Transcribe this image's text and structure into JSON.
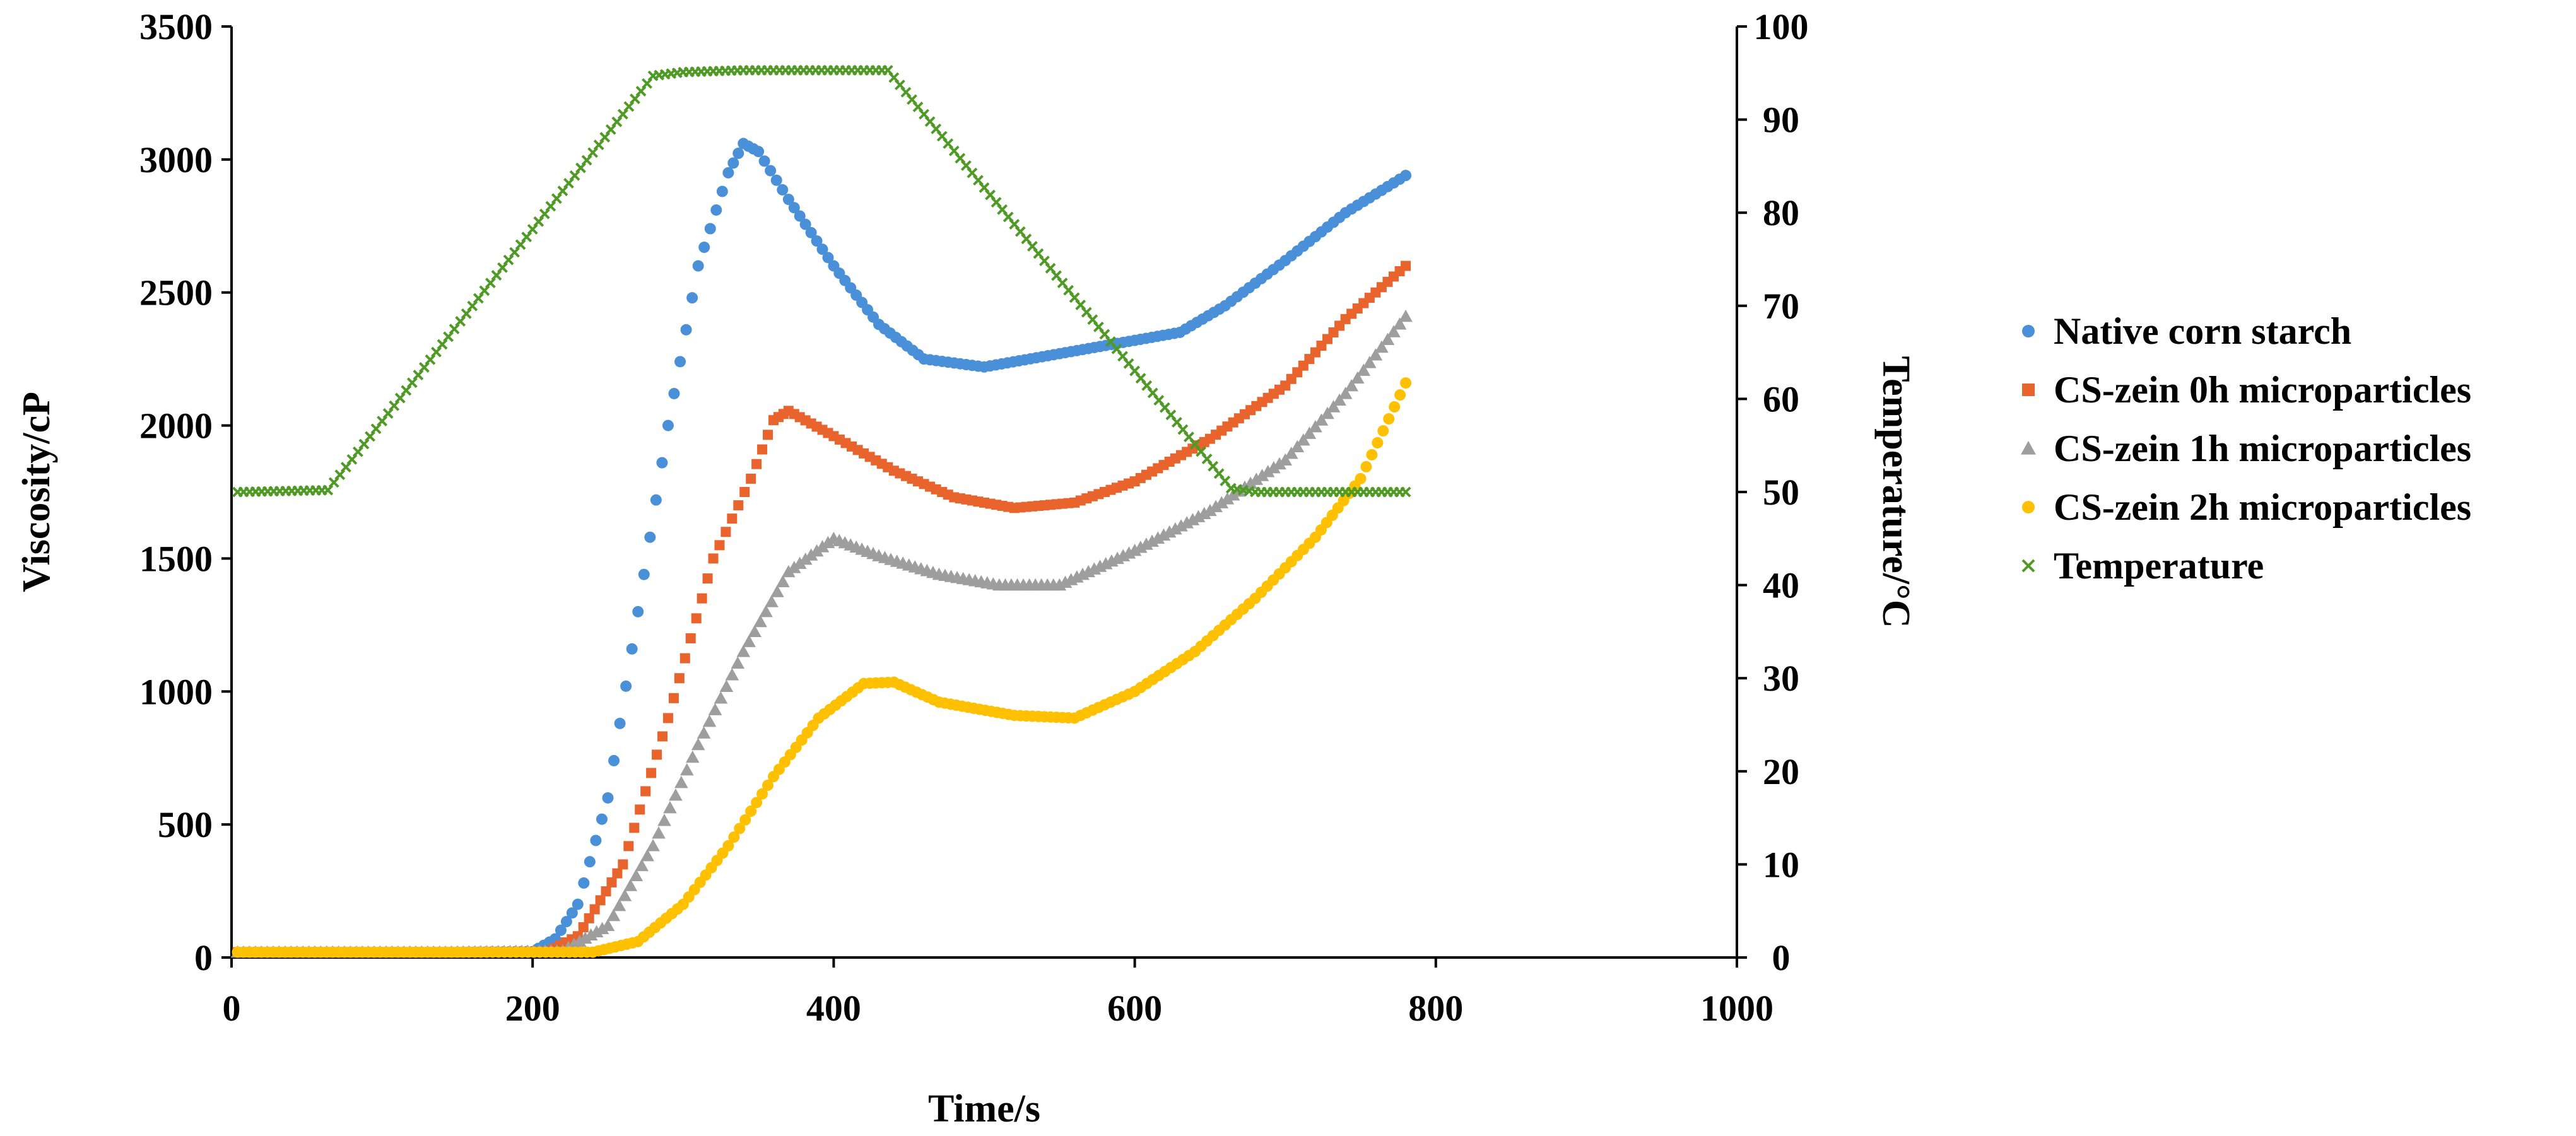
{
  "chart_data": {
    "type": "scatter",
    "title": "",
    "xlabel": "Time/s",
    "ylabel": "Viscosity/cP",
    "y2label": "Temperature/°C",
    "xlim": [
      0,
      1000
    ],
    "ylim": [
      0,
      3500
    ],
    "y2lim": [
      0,
      100
    ],
    "xticks": [
      "0",
      "200",
      "400",
      "600",
      "800",
      "1000"
    ],
    "yticks": [
      "0",
      "500",
      "1000",
      "1500",
      "2000",
      "2500",
      "3000",
      "3500"
    ],
    "y2ticks": [
      "0",
      "10",
      "20",
      "30",
      "40",
      "50",
      "60",
      "70",
      "80",
      "90",
      "100"
    ],
    "grid": false,
    "legend_position": "right",
    "series": [
      {
        "name": "Native corn starch",
        "axis": "left",
        "marker": "circle",
        "color": "#4A90D9",
        "points": [
          [
            4,
            20
          ],
          [
            150,
            20
          ],
          [
            200,
            22
          ],
          [
            215,
            70
          ],
          [
            230,
            200
          ],
          [
            250,
            600
          ],
          [
            270,
            1300
          ],
          [
            290,
            2000
          ],
          [
            310,
            2600
          ],
          [
            330,
            2950
          ],
          [
            340,
            3060
          ],
          [
            350,
            3030
          ],
          [
            370,
            2850
          ],
          [
            400,
            2600
          ],
          [
            430,
            2380
          ],
          [
            460,
            2250
          ],
          [
            500,
            2220
          ],
          [
            550,
            2270
          ],
          [
            600,
            2320
          ],
          [
            630,
            2350
          ],
          [
            660,
            2450
          ],
          [
            700,
            2620
          ],
          [
            740,
            2800
          ],
          [
            780,
            2940
          ]
        ]
      },
      {
        "name": "CS-zein 0h microparticles",
        "axis": "left",
        "marker": "square",
        "color": "#E8642C",
        "points": [
          [
            4,
            20
          ],
          [
            150,
            20
          ],
          [
            210,
            22
          ],
          [
            230,
            80
          ],
          [
            260,
            350
          ],
          [
            290,
            900
          ],
          [
            320,
            1500
          ],
          [
            345,
            1800
          ],
          [
            360,
            2020
          ],
          [
            370,
            2055
          ],
          [
            400,
            1960
          ],
          [
            440,
            1830
          ],
          [
            480,
            1730
          ],
          [
            520,
            1690
          ],
          [
            560,
            1710
          ],
          [
            600,
            1790
          ],
          [
            650,
            1950
          ],
          [
            700,
            2150
          ],
          [
            740,
            2400
          ],
          [
            780,
            2600
          ]
        ]
      },
      {
        "name": "CS-zein 1h microparticles",
        "axis": "left",
        "marker": "triangle",
        "color": "#9E9E9E",
        "points": [
          [
            4,
            20
          ],
          [
            150,
            20
          ],
          [
            220,
            25
          ],
          [
            250,
            120
          ],
          [
            280,
            420
          ],
          [
            310,
            800
          ],
          [
            340,
            1150
          ],
          [
            370,
            1450
          ],
          [
            400,
            1575
          ],
          [
            430,
            1510
          ],
          [
            470,
            1440
          ],
          [
            510,
            1400
          ],
          [
            550,
            1400
          ],
          [
            600,
            1530
          ],
          [
            650,
            1680
          ],
          [
            700,
            1870
          ],
          [
            740,
            2120
          ],
          [
            780,
            2410
          ]
        ]
      },
      {
        "name": "CS-zein 2h microparticles",
        "axis": "left",
        "marker": "circle",
        "color": "#FFC000",
        "points": [
          [
            4,
            20
          ],
          [
            150,
            20
          ],
          [
            240,
            20
          ],
          [
            270,
            60
          ],
          [
            300,
            200
          ],
          [
            330,
            420
          ],
          [
            360,
            680
          ],
          [
            390,
            900
          ],
          [
            420,
            1030
          ],
          [
            440,
            1035
          ],
          [
            470,
            960
          ],
          [
            520,
            910
          ],
          [
            560,
            900
          ],
          [
            600,
            1000
          ],
          [
            640,
            1150
          ],
          [
            680,
            1350
          ],
          [
            720,
            1580
          ],
          [
            750,
            1800
          ],
          [
            780,
            2160
          ]
        ]
      },
      {
        "name": "Temperature",
        "axis": "right",
        "marker": "cross",
        "color": "#4E9A25",
        "points": [
          [
            4,
            50
          ],
          [
            64,
            50.2
          ],
          [
            280,
            94.7
          ],
          [
            300,
            95.1
          ],
          [
            340,
            95.3
          ],
          [
            436,
            95.3
          ],
          [
            664,
            50.4
          ],
          [
            680,
            50
          ],
          [
            780,
            50
          ]
        ]
      }
    ]
  }
}
